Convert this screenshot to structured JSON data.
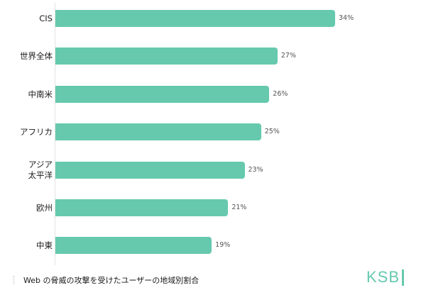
{
  "chart_data": {
    "type": "bar",
    "orientation": "horizontal",
    "title": "Web の脅威の攻撃を受けたユーザーの地域別割合",
    "categories": [
      "CIS",
      "世界全体",
      "中南米",
      "アフリカ",
      "アジア\n太平洋",
      "欧州",
      "中東"
    ],
    "values": [
      34,
      27,
      26,
      25,
      23,
      21,
      19
    ],
    "value_labels": [
      "34%",
      "27%",
      "26%",
      "25%",
      "23%",
      "21%",
      "19%"
    ],
    "unit": "%",
    "xlabel": "",
    "ylabel": "",
    "xlim": [
      0,
      34
    ],
    "grid": false,
    "legend": null,
    "bar_color": "#66C9AE"
  },
  "rows": [
    {
      "label": "CIS",
      "value": 34,
      "value_label": "34%"
    },
    {
      "label": "世界全体",
      "value": 27,
      "value_label": "27%"
    },
    {
      "label": "中南米",
      "value": 26,
      "value_label": "26%"
    },
    {
      "label": "アフリカ",
      "value": 25,
      "value_label": "25%"
    },
    {
      "label_line1": "アジア",
      "label_line2": "太平洋",
      "value": 23,
      "value_label": "23%"
    },
    {
      "label": "欧州",
      "value": 21,
      "value_label": "21%"
    },
    {
      "label": "中東",
      "value": 19,
      "value_label": "19%"
    }
  ],
  "caption": "Web の脅威の攻撃を受けたユーザーの地域別割合",
  "logo": "KSB",
  "colors": {
    "bar": "#66C9AE",
    "logo": "#66C9AE",
    "value_text": "#555555"
  }
}
